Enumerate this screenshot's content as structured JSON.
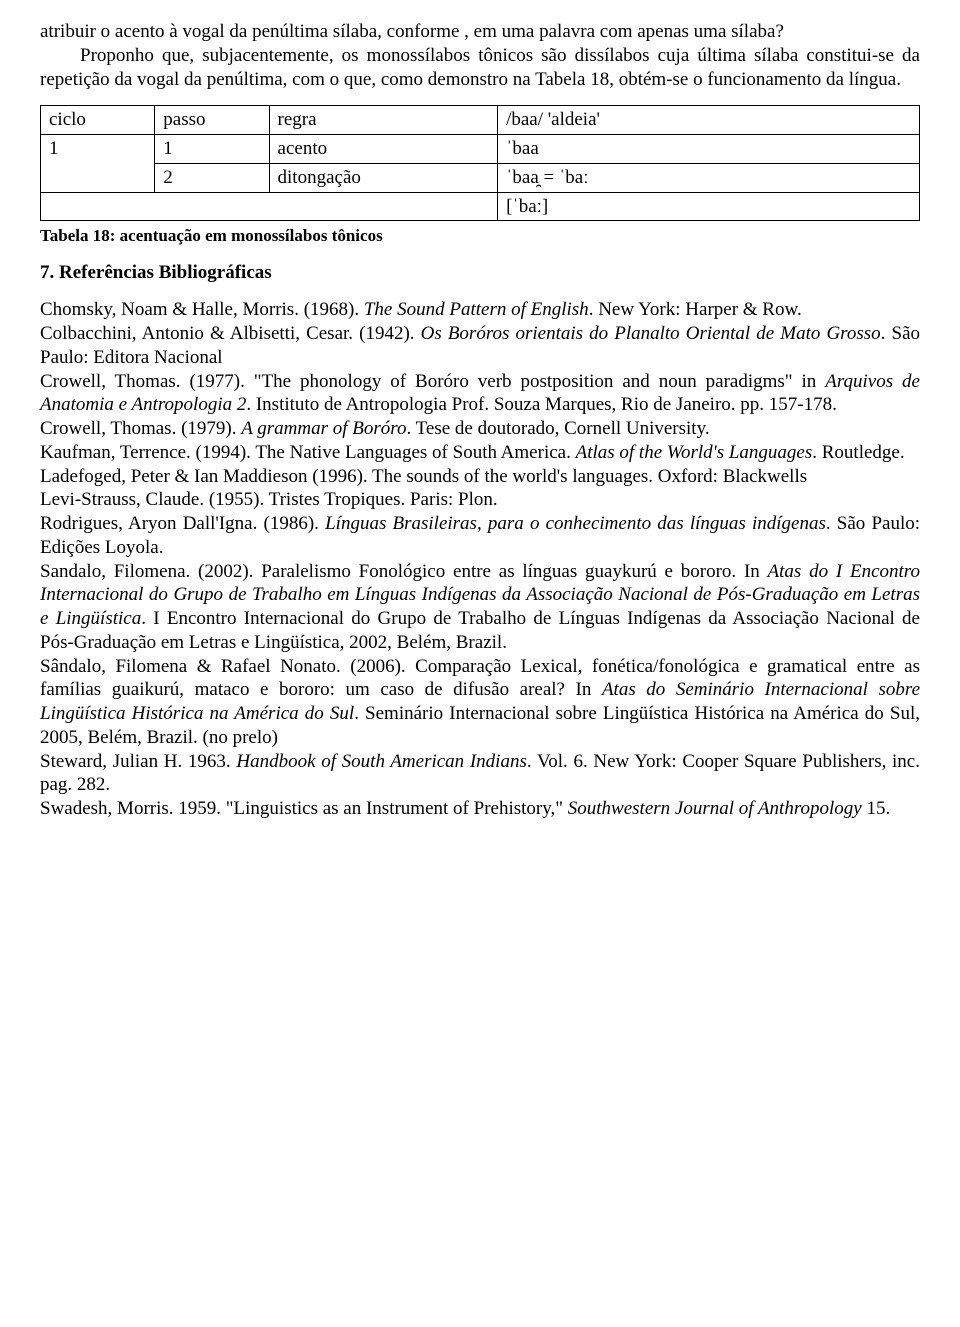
{
  "para1": "atribuir o acento à vogal da penúltima sílaba, conforme , em uma palavra com apenas uma sílaba?",
  "para2": "Proponho que, subjacentemente, os monossílabos tônicos são dissílabos cuja última sílaba constitui-se da repetição da vogal da penúltima, com o que, como demonstro na Tabela 18, obtém-se o funcionamento da língua.",
  "table": {
    "header": [
      "ciclo",
      "passo",
      "regra",
      "/baa/ 'aldeia'"
    ],
    "rows": [
      [
        "1",
        "1",
        "acento",
        "ˈbaa"
      ],
      [
        "",
        "2",
        "ditongação",
        "ˈbaa̯ = ˈbaː"
      ],
      [
        "",
        "",
        "",
        "[ˈbaː]"
      ]
    ],
    "caption": "Tabela 18: acentuação em monossílabos tônicos"
  },
  "section_heading": "7. Referências Bibliográficas",
  "refs": [
    {
      "plain_before": "Chomsky, Noam & Halle, Morris. (1968). ",
      "ital": "The Sound Pattern of English",
      "plain_after": ". New York: Harper & Row."
    },
    {
      "plain_before": "Colbacchini, Antonio & Albisetti, Cesar. (1942). ",
      "ital": "Os Boróros orientais do Planalto Oriental de Mato Grosso",
      "plain_after": ". São Paulo: Editora Nacional"
    },
    {
      "plain_before": "Crowell, Thomas. (1977). \"The phonology of Boróro verb postposition and noun paradigms\" in ",
      "ital": "Arquivos de Anatomia e Antropologia 2",
      "plain_after": ". Instituto de Antropologia Prof. Souza Marques, Rio de Janeiro. pp. 157-178."
    },
    {
      "plain_before": "Crowell, Thomas. (1979). ",
      "ital": "A grammar of Boróro",
      "plain_after": ". Tese de doutorado, Cornell University."
    },
    {
      "plain_before": "Kaufman, Terrence. (1994). The Native Languages of South America. ",
      "ital": "Atlas of the World's Languages",
      "plain_after": ". Routledge."
    },
    {
      "plain_before": "Ladefoged, Peter & Ian Maddieson (1996). The sounds of the world's languages. Oxford: Blackwells",
      "ital": "",
      "plain_after": ""
    },
    {
      "plain_before": "Levi-Strauss, Claude. (1955). Tristes Tropiques. Paris: Plon.",
      "ital": "",
      "plain_after": ""
    },
    {
      "plain_before": "Rodrigues, Aryon Dall'Igna. (1986). ",
      "ital": "Línguas Brasileiras, para o conhecimento das línguas indígenas",
      "plain_after": ". São Paulo: Edições Loyola."
    },
    {
      "plain_before": "Sandalo, Filomena. (2002). Paralelismo Fonológico entre as línguas guaykurú e bororo. In ",
      "ital": "Atas do I Encontro Internacional do Grupo de Trabalho em Línguas Indígenas da Associação Nacional de Pós-Graduação em Letras e Lingüística",
      "plain_after": ". I Encontro Internacional do Grupo de Trabalho de Línguas Indígenas da Associação Nacional de Pós-Graduação em Letras e Lingüística, 2002, Belém, Brazil."
    },
    {
      "plain_before": "Sândalo, Filomena & Rafael Nonato. (2006). Comparação Lexical, fonética/fonológica e gramatical entre as famílias guaikurú, mataco e bororo: um caso de difusão areal? In ",
      "ital": "Atas do Seminário Internacional sobre Lingüística Histórica na América do Sul",
      "plain_after": ". Seminário Internacional sobre Lingüística Histórica na América do Sul, 2005, Belém, Brazil. (no prelo)"
    },
    {
      "plain_before": "Steward, Julian H. 1963. ",
      "ital": "Handbook of South American Indians",
      "plain_after": ". Vol. 6. New York: Cooper Square Publishers, inc. pag. 282."
    },
    {
      "plain_before": "Swadesh, Morris. 1959. \"Linguistics as an Instrument of Prehistory,\" ",
      "ital": "Southwestern Journal of Anthropology",
      "plain_after": " 15."
    }
  ]
}
